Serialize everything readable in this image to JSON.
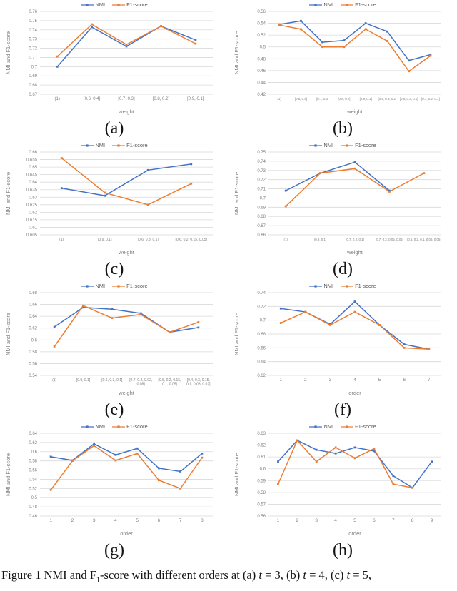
{
  "colors": {
    "nmi": "#4472C4",
    "f1": "#ED7D31",
    "gridline": "#D9D9D9",
    "axis_text": "#7F7F7F",
    "legend_text": "#595959"
  },
  "caption": {
    "segments": [
      {
        "text": "Figure 1 NMI and F"
      },
      {
        "text": "1",
        "sub": true
      },
      {
        "text": "-score with different orders at (a) "
      },
      {
        "text": "t",
        "italic": true
      },
      {
        "text": " = 3, (b) "
      },
      {
        "text": "t",
        "italic": true
      },
      {
        "text": " = 4, (c) "
      },
      {
        "text": "t",
        "italic": true
      },
      {
        "text": " = 5,"
      }
    ]
  },
  "chart_data": [
    {
      "id": "a",
      "letter": "(a)",
      "type": "line",
      "grid": true,
      "legend_position": "top",
      "xlabel": "weight",
      "ylabel": "NMI and F1-score",
      "ylim": [
        0.67,
        0.76
      ],
      "ystep": 0.01,
      "categories": [
        "(1)",
        "[0.6, 0.4]",
        "[0.7, 0.3]",
        "[0.8, 0.2]",
        "[0.9, 0.1]"
      ],
      "series": [
        {
          "name": "NMI",
          "color": "#4472C4",
          "values": [
            0.7,
            0.743,
            0.722,
            0.744,
            0.729
          ]
        },
        {
          "name": "F1-score",
          "color": "#ED7D31",
          "values": [
            0.711,
            0.746,
            0.724,
            0.744,
            0.725
          ]
        }
      ]
    },
    {
      "id": "b",
      "letter": "(b)",
      "type": "line",
      "grid": true,
      "legend_position": "top",
      "xlabel": "weight",
      "ylabel": "NMI and F1-score",
      "ylim": [
        0.42,
        0.56
      ],
      "ystep": 0.02,
      "categories": [
        "(1)",
        "[0.6, 0.4]",
        "[0.7, 0.3]",
        "[0.8, 0.2]",
        "[0.9, 0.1]",
        "[0.5, 0.3, 0.2]",
        "[0.6, 0.3, 0.1]",
        "[0.7, 0.2, 0.1]"
      ],
      "series": [
        {
          "name": "NMI",
          "color": "#4472C4",
          "values": [
            0.538,
            0.544,
            0.508,
            0.511,
            0.54,
            0.526,
            0.477,
            0.487
          ]
        },
        {
          "name": "F1-score",
          "color": "#ED7D31",
          "values": [
            0.537,
            0.53,
            0.5,
            0.5,
            0.53,
            0.51,
            0.459,
            0.485
          ]
        }
      ]
    },
    {
      "id": "c",
      "letter": "(c)",
      "type": "line",
      "grid": true,
      "legend_position": "top",
      "xlabel": "weight",
      "ylabel": "NMI and F1-score",
      "ylim": [
        0.605,
        0.66
      ],
      "ystep": 0.005,
      "categories": [
        "(1)",
        "[0.9, 0.1]",
        "[0.6, 0.3, 0.1]",
        "[0.6, 0.2, 0.15, 0.05]"
      ],
      "series": [
        {
          "name": "NMI",
          "color": "#4472C4",
          "values": [
            0.636,
            0.631,
            0.648,
            0.652
          ]
        },
        {
          "name": "F1-score",
          "color": "#ED7D31",
          "values": [
            0.656,
            0.633,
            0.625,
            0.639
          ]
        }
      ]
    },
    {
      "id": "d",
      "letter": "(d)",
      "type": "line",
      "grid": true,
      "legend_position": "top",
      "xlabel": "weight",
      "ylabel": "NMI and F1-score",
      "ylim": [
        0.66,
        0.75
      ],
      "ystep": 0.01,
      "categories": [
        "(1)",
        "[0.9, 0.1]",
        "[0.7, 0.2, 0.1]",
        "[0.7, 0.2, 0.05, 0.05]",
        "[0.6, 0.2, 0.1, 0.05, 0.05]"
      ],
      "series": [
        {
          "name": "NMI",
          "color": "#4472C4",
          "values": [
            0.708,
            0.727,
            0.739,
            0.708,
            null
          ]
        },
        {
          "name": "F1-score",
          "color": "#ED7D31",
          "values": [
            0.691,
            0.727,
            0.732,
            0.707,
            0.727
          ]
        }
      ]
    },
    {
      "id": "e",
      "letter": "(e)",
      "type": "line",
      "grid": true,
      "legend_position": "top",
      "xlabel": "weight",
      "ylabel": "NMI and F1-score",
      "ylim": [
        0.54,
        0.68
      ],
      "ystep": 0.02,
      "categories": [
        "(1)",
        "[0.9, 0.1]",
        "[0.6, 0.3, 0.1]",
        "[0.7, 0.2, 0.02,\n0.08]",
        "[0.5, 0.2, 0.15,\n0.1, 0.05]",
        "[0.4, 0.3, 0.15,\n0.1, 0.03, 0.02]"
      ],
      "series": [
        {
          "name": "NMI",
          "color": "#4472C4",
          "values": [
            0.622,
            0.655,
            0.652,
            0.645,
            0.613,
            0.621
          ]
        },
        {
          "name": "F1-score",
          "color": "#ED7D31",
          "values": [
            0.589,
            0.658,
            0.637,
            0.643,
            0.613,
            0.63
          ]
        }
      ]
    },
    {
      "id": "f",
      "letter": "(f)",
      "type": "line",
      "grid": true,
      "legend_position": "top",
      "xlabel": "order",
      "ylabel": "NMI and F1-score",
      "ylim": [
        0.62,
        0.74
      ],
      "ystep": 0.02,
      "categories": [
        "1",
        "2",
        "3",
        "4",
        "5",
        "6",
        "7"
      ],
      "series": [
        {
          "name": "NMI",
          "color": "#4472C4",
          "values": [
            0.717,
            0.712,
            0.694,
            0.727,
            0.693,
            0.665,
            0.658
          ]
        },
        {
          "name": "F1-score",
          "color": "#ED7D31",
          "values": [
            0.696,
            0.712,
            0.693,
            0.712,
            0.693,
            0.66,
            0.658
          ]
        }
      ]
    },
    {
      "id": "g",
      "letter": "(g)",
      "type": "line",
      "grid": true,
      "legend_position": "top",
      "xlabel": "order",
      "ylabel": "NMI and F1-score",
      "ylim": [
        0.46,
        0.64
      ],
      "ystep": 0.02,
      "categories": [
        "1",
        "2",
        "3",
        "4",
        "5",
        "6",
        "7",
        "8"
      ],
      "series": [
        {
          "name": "NMI",
          "color": "#4472C4",
          "values": [
            0.589,
            0.581,
            0.617,
            0.593,
            0.607,
            0.564,
            0.557,
            0.596
          ]
        },
        {
          "name": "F1-score",
          "color": "#ED7D31",
          "values": [
            0.517,
            0.58,
            0.613,
            0.581,
            0.596,
            0.538,
            0.52,
            0.587
          ]
        }
      ]
    },
    {
      "id": "h",
      "letter": "(h)",
      "type": "line",
      "grid": true,
      "legend_position": "top",
      "xlabel": "order",
      "ylabel": "NMI and F1-score",
      "ylim": [
        0.56,
        0.63
      ],
      "ystep": 0.01,
      "categories": [
        "1",
        "2",
        "3",
        "4",
        "5",
        "6",
        "7",
        "8",
        "9"
      ],
      "series": [
        {
          "name": "NMI",
          "color": "#4472C4",
          "values": [
            0.606,
            0.624,
            0.616,
            0.613,
            0.618,
            0.615,
            0.594,
            0.584,
            0.606
          ]
        },
        {
          "name": "F1-score",
          "color": "#ED7D31",
          "values": [
            0.587,
            0.624,
            0.606,
            0.618,
            0.609,
            0.617,
            0.587,
            0.584,
            null
          ]
        }
      ]
    }
  ]
}
